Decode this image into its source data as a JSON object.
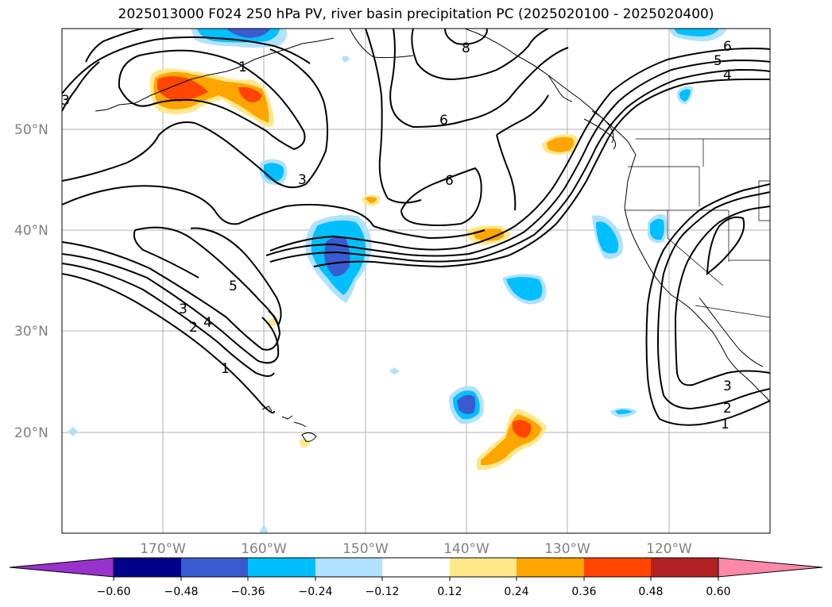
{
  "title": "2025013000 F024 250 hPa PV, river basin precipitation PC (2025020100 - 2025020400)",
  "latitude_labels": [
    "50°N",
    "40°N",
    "30°N",
    "20°N"
  ],
  "longitude_labels": [
    "170°W",
    "160°W",
    "150°W",
    "140°W",
    "130°W",
    "120°W"
  ],
  "contour_labels": [
    "1",
    "2",
    "3",
    "4",
    "5",
    "6",
    "8"
  ],
  "colorbar": {
    "ticks": [
      "−0.60",
      "−0.48",
      "−0.36",
      "−0.24",
      "−0.12",
      "0.12",
      "0.24",
      "0.36",
      "0.48",
      "0.60"
    ],
    "colors": [
      "#9932cc",
      "#00008b",
      "#3a5bd0",
      "#00bfff",
      "#b0e2ff",
      "#ffffff",
      "#ffe88a",
      "#ffa500",
      "#ff4500",
      "#b22222",
      "#ff88aa"
    ]
  },
  "colors": {
    "grid": "#b0b0b0",
    "tick_labels": "#808080",
    "contour": "#000000"
  }
}
